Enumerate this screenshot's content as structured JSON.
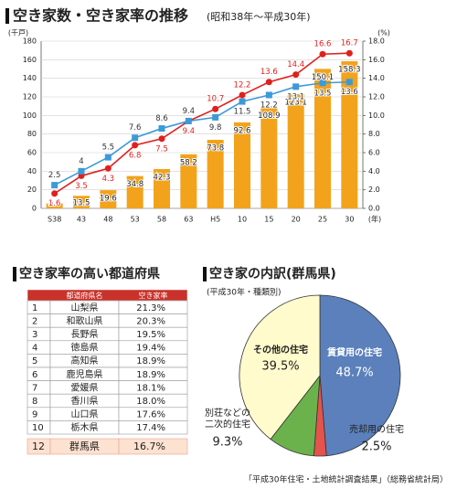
{
  "chart_data": [
    {
      "type": "bar",
      "title": "空き家数・空き家率の推移",
      "subtitle": "(昭和38年～平成30年)",
      "y_label": "(千戸)",
      "y2_label": "(%)",
      "x_unit": "(年)",
      "categories": [
        "S38",
        "43",
        "48",
        "53",
        "58",
        "63",
        "H5",
        "10",
        "15",
        "20",
        "25",
        "30"
      ],
      "series": [
        {
          "type": "bar",
          "color": "#f2a31b",
          "values": [
            5.3,
            13.5,
            19.6,
            34.8,
            42.3,
            58.2,
            73.8,
            92.6,
            108.9,
            123.1,
            150.1,
            158.3
          ]
        },
        {
          "type": "line",
          "axis": "y2",
          "marker": "circle",
          "color": "#e0201c",
          "values": [
            1.6,
            3.5,
            4.3,
            6.8,
            7.5,
            9.4,
            10.7,
            12.2,
            13.6,
            14.4,
            16.6,
            16.7
          ]
        },
        {
          "type": "line",
          "axis": "y2",
          "marker": "square",
          "color": "#3c9ad8",
          "values": [
            2.5,
            4.0,
            5.5,
            7.6,
            8.6,
            9.4,
            9.8,
            11.5,
            12.2,
            13.1,
            13.5,
            13.6
          ]
        }
      ],
      "ylim": [
        0,
        180
      ],
      "yticks": [
        0,
        20,
        40,
        60,
        80,
        100,
        120,
        140,
        160,
        180
      ],
      "y2lim": [
        0,
        18
      ],
      "y2ticks": [
        {
          "value": 0,
          "label": "0.0"
        },
        {
          "value": 2,
          "label": "2.0"
        },
        {
          "value": 4,
          "label": "4.0"
        },
        {
          "value": 6,
          "label": "6.0"
        },
        {
          "value": 8,
          "label": "8.0"
        },
        {
          "value": 10,
          "label": "10.0"
        },
        {
          "value": 12,
          "label": "12.0"
        },
        {
          "value": 14,
          "label": "14.0"
        },
        {
          "value": 16,
          "label": "16.0"
        },
        {
          "value": 18,
          "label": "18.0"
        }
      ],
      "grid": true
    },
    {
      "type": "pie",
      "title": "空き家の内訳(群馬県)",
      "subtitle": "(平成30年・種類別)",
      "categories": [
        "賃貸用の住宅",
        "売却用の住宅",
        "別荘などの\n二次的住宅",
        "その他の住宅"
      ],
      "values": [
        48.7,
        2.5,
        9.3,
        39.5
      ],
      "value_labels": [
        "48.7%",
        "2.5%",
        "9.3%",
        "39.5%"
      ],
      "colors": [
        "#5b80bb",
        "#e4534c",
        "#6bb24d",
        "#fffbcc"
      ]
    }
  ],
  "table": {
    "title": "空き家率の高い都道府県",
    "header": [
      "都道府県名",
      "空き家率"
    ],
    "rows": [
      [
        "1",
        "山梨県",
        "21.3%"
      ],
      [
        "2",
        "和歌山県",
        "20.3%"
      ],
      [
        "3",
        "長野県",
        "19.5%"
      ],
      [
        "4",
        "徳島県",
        "19.4%"
      ],
      [
        "5",
        "高知県",
        "18.9%"
      ],
      [
        "6",
        "鹿児島県",
        "18.9%"
      ],
      [
        "7",
        "愛媛県",
        "18.1%"
      ],
      [
        "8",
        "香川県",
        "18.0%"
      ],
      [
        "9",
        "山口県",
        "17.6%"
      ],
      [
        "10",
        "栃木県",
        "17.4%"
      ],
      [
        "12",
        "群馬県",
        "16.7%"
      ]
    ]
  },
  "footer": "「平成30年住宅・土地統計調査結果」（総務省統計局）"
}
